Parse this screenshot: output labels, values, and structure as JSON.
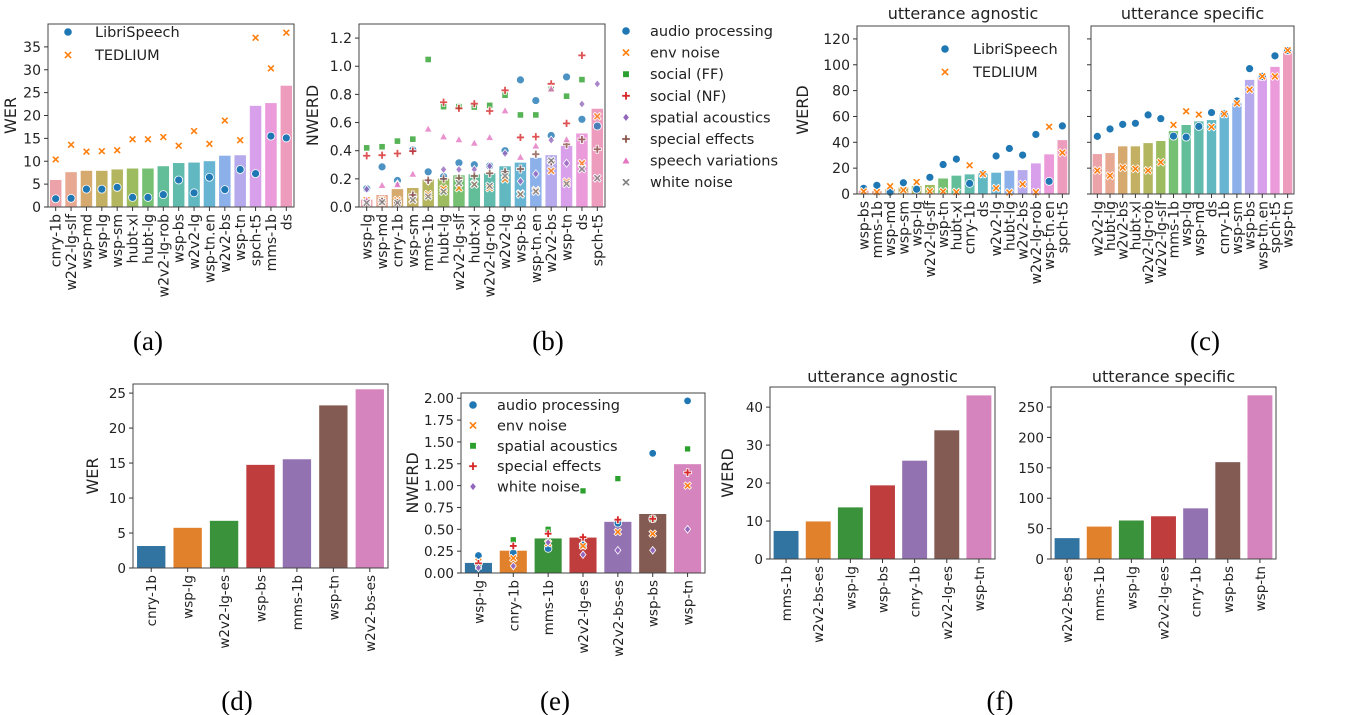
{
  "bar_palette16": [
    "#e8939a",
    "#e49a7f",
    "#cf9a55",
    "#b9a246",
    "#a6a843",
    "#8bb043",
    "#5db559",
    "#45b386",
    "#45b0a0",
    "#46acb5",
    "#4da8cb",
    "#78a3e6",
    "#a99be9",
    "#d18fe6",
    "#e789d4",
    "#ea8bb3"
  ],
  "bar_palette7": [
    "#3274a1",
    "#e1812c",
    "#3a923a",
    "#c03d3e",
    "#9372b2",
    "#845b53",
    "#d684bd"
  ],
  "marker_colors": {
    "blue": "#1f77b4",
    "orange": "#ff7f0e",
    "green": "#2ca02c",
    "red": "#d62728",
    "purple": "#9467bd",
    "brown": "#8c564b",
    "pink": "#e377c2",
    "gray": "#7f7f7f"
  },
  "captions": [
    "(a)",
    "(b)",
    "(c)",
    "(d)",
    "(e)",
    "(f)"
  ],
  "chart_data": [
    {
      "panel": "(a)",
      "type": "bar+scatter",
      "title": "",
      "ylabel": "WER",
      "ylim": [
        0,
        40
      ],
      "yticks": [
        "0",
        "5",
        "10",
        "15",
        "20",
        "25",
        "30",
        "35"
      ],
      "ytick_values": [
        0,
        5,
        10,
        15,
        20,
        25,
        30,
        35
      ],
      "categories": [
        "cnry-1b",
        "w2v2-lg-slf",
        "wsp-md",
        "wsp-lg",
        "wsp-sm",
        "hubt-xl",
        "hubt-lg",
        "w2v2-lg-rob",
        "wsp-bs",
        "w2v2-lg",
        "wsp-tn.en",
        "w2v2-bs",
        "wsp-tn",
        "spch-t5",
        "mms-1b",
        "ds"
      ],
      "bars": [
        6.0,
        7.7,
        8.0,
        8.0,
        8.3,
        8.5,
        8.5,
        9.0,
        9.7,
        9.8,
        10.1,
        11.3,
        11.4,
        22.2,
        22.8,
        26.6
      ],
      "bar_colors": "palette16",
      "series": [
        {
          "name": "LibriSpeech",
          "marker": "circle",
          "color": "blue",
          "values": [
            1.8,
            1.9,
            3.9,
            3.9,
            4.3,
            2.1,
            2.1,
            2.7,
            5.9,
            3.1,
            6.5,
            3.8,
            8.2,
            7.3,
            15.5,
            15.1
          ]
        },
        {
          "name": "TEDLIUM",
          "marker": "x",
          "color": "orange",
          "values": [
            10.4,
            13.6,
            12.1,
            12.2,
            12.4,
            14.8,
            14.8,
            15.3,
            13.4,
            16.6,
            13.8,
            18.9,
            14.6,
            37.0,
            30.3,
            38.1
          ]
        }
      ],
      "legend": "upper-left"
    },
    {
      "panel": "(b)",
      "type": "bar+scatter",
      "title": "",
      "ylabel": "NWERD",
      "ylim": [
        0,
        1.3
      ],
      "yticks": [
        "0.0",
        "0.2",
        "0.4",
        "0.6",
        "0.8",
        "1.0",
        "1.2"
      ],
      "ytick_values": [
        0,
        0.2,
        0.4,
        0.6,
        0.8,
        1.0,
        1.2
      ],
      "categories": [
        "wsp-lg",
        "wsp-md",
        "cnry-1b",
        "wsp-sm",
        "mms-1b",
        "hubt-lg",
        "w2v2-lg-slf",
        "hubt-xl",
        "w2v2-lg-rob",
        "w2v2-lg",
        "wsp-bs",
        "wsp-tn.en",
        "w2v2-bs",
        "wsp-tn",
        "ds",
        "spch-t5"
      ],
      "bars": [
        0.055,
        0.088,
        0.13,
        0.138,
        0.197,
        0.204,
        0.228,
        0.235,
        0.242,
        0.292,
        0.318,
        0.352,
        0.371,
        0.437,
        0.525,
        0.701
      ],
      "bar_colors": "palette16",
      "series": [
        {
          "name": "audio processing",
          "marker": "circle",
          "color": "blue",
          "values": [
            0.13,
            0.285,
            0.188,
            0.406,
            0.25,
            0.216,
            0.314,
            0.3,
            0.292,
            0.4,
            0.903,
            0.756,
            0.508,
            0.924,
            0.623,
            0.575
          ]
        },
        {
          "name": "env noise",
          "marker": "x",
          "color": "orange",
          "values": [
            0.05,
            0.05,
            0.048,
            0.055,
            0.09,
            0.13,
            0.135,
            0.164,
            0.135,
            0.197,
            0.095,
            0.119,
            0.257,
            0.18,
            0.311,
            0.644
          ]
        },
        {
          "name": "social (FF)",
          "marker": "square",
          "color": "green",
          "values": [
            0.42,
            0.428,
            0.468,
            0.482,
            1.048,
            0.713,
            0.713,
            0.71,
            0.722,
            0.794,
            0.654,
            0.654,
            0.836,
            0.787,
            0.905,
            null
          ]
        },
        {
          "name": "social (NF)",
          "marker": "plus",
          "color": "red",
          "values": [
            0.364,
            0.368,
            0.38,
            0.397,
            null,
            0.744,
            0.701,
            0.734,
            0.682,
            0.829,
            0.494,
            0.499,
            0.875,
            0.594,
            1.077,
            null
          ]
        },
        {
          "name": "spatial acoustics",
          "marker": "diamond",
          "color": "purple",
          "values": [
            0.126,
            0.05,
            0.164,
            0.085,
            0.183,
            0.266,
            0.266,
            0.266,
            0.29,
            0.38,
            0.183,
            0.235,
            0.475,
            0.311,
            0.732,
            0.875
          ]
        },
        {
          "name": "special effects",
          "marker": "plus",
          "color": "brown",
          "values": [
            0.03,
            0.04,
            0.03,
            0.085,
            0.19,
            0.2,
            0.205,
            0.22,
            0.24,
            0.25,
            0.27,
            0.375,
            0.32,
            0.445,
            0.48,
            0.41
          ]
        },
        {
          "name": "speech variations",
          "marker": "triangle",
          "color": "pink",
          "values": [
            0.05,
            0.155,
            0.16,
            0.235,
            0.555,
            0.5,
            0.48,
            0.455,
            0.495,
            0.685,
            0.355,
            0.435,
            0.84,
            0.48,
            null,
            null
          ]
        },
        {
          "name": "white noise",
          "marker": "x",
          "color": "gray",
          "values": [
            0.03,
            0.035,
            0.03,
            0.05,
            0.075,
            0.11,
            0.17,
            0.16,
            0.15,
            0.22,
            0.09,
            0.11,
            0.33,
            0.165,
            0.27,
            0.205
          ]
        }
      ],
      "legend": "outside-right"
    },
    {
      "panel": "(c)",
      "type": "bar+scatter",
      "title": "utterance agnostic",
      "ylabel": "WERD",
      "ylim": [
        0,
        130
      ],
      "yticks": [
        "0",
        "20",
        "40",
        "60",
        "80",
        "100",
        "120"
      ],
      "ytick_values": [
        0,
        20,
        40,
        60,
        80,
        100,
        120
      ],
      "categories": [
        "wsp-bs",
        "mms-1b",
        "wsp-md",
        "wsp-sm",
        "wsp-lg",
        "w2v2-lg-slf",
        "wsp-tn",
        "hubt-xl",
        "cnry-1b",
        "ds",
        "w2v2-lg",
        "hubt-lg",
        "w2v2-bs",
        "w2v2-lg-rob",
        "wsp-tn.en",
        "spch-t5"
      ],
      "bars": [
        3,
        2.5,
        4,
        5.5,
        6.5,
        7.3,
        12.3,
        14.5,
        15.5,
        16,
        16.8,
        18.3,
        18.8,
        24,
        31,
        42
      ],
      "bar_colors": "palette16",
      "series": [
        {
          "name": "LibriSpeech",
          "marker": "circle",
          "color": "blue",
          "values": [
            4.4,
            6.7,
            1.5,
            8.7,
            3.7,
            12.9,
            22.8,
            27,
            8.2,
            15.6,
            29.4,
            35.2,
            30.1,
            46.1,
            9.8,
            52.7
          ]
        },
        {
          "name": "TEDLIUM",
          "marker": "x",
          "color": "orange",
          "values": [
            2,
            1.5,
            6,
            3,
            9.3,
            2.1,
            2,
            1.5,
            22.2,
            15.5,
            4.5,
            1.2,
            7.6,
            1.4,
            52,
            32
          ]
        }
      ],
      "legend": "upper-right"
    },
    {
      "panel": "(c)",
      "type": "bar+scatter",
      "title": "utterance specific",
      "ylabel": "",
      "ylim": [
        0,
        130
      ],
      "sharey": true,
      "yticks": [
        "",
        "",
        "",
        "",
        "",
        "",
        ""
      ],
      "ytick_values": [
        0,
        20,
        40,
        60,
        80,
        100,
        120
      ],
      "categories": [
        "w2v2-lg",
        "hubt-lg",
        "w2v2-bs",
        "hubt-xl",
        "w2v2-lg-rob",
        "w2v2-lg-slf",
        "mms-1b",
        "wsp-lg",
        "wsp-md",
        "ds",
        "cnry-1b",
        "wsp-sm",
        "wsp-bs",
        "wsp-tn.en",
        "spch-t5",
        "wsp-tn"
      ],
      "bars": [
        31.2,
        32,
        37.2,
        37.2,
        39.7,
        41.3,
        49,
        53.7,
        56.5,
        57.5,
        61.8,
        70.5,
        88.6,
        90.8,
        98.7,
        111
      ],
      "bar_colors": "palette16",
      "series": [
        {
          "name": "LibriSpeech",
          "marker": "circle",
          "color": "blue",
          "values": [
            44.6,
            50.3,
            53.9,
            54.7,
            61.2,
            58.3,
            44.8,
            44,
            52.3,
            63,
            62,
            72,
            97,
            91,
            106.9,
            111
          ]
        },
        {
          "name": "TEDLIUM",
          "marker": "x",
          "color": "orange",
          "values": [
            18.2,
            14.2,
            20.4,
            19.5,
            18.2,
            24.6,
            53.5,
            64,
            61.5,
            51.9,
            62,
            70.2,
            80.8,
            91,
            91,
            111.2
          ]
        }
      ],
      "legend": "none"
    },
    {
      "panel": "(d)",
      "type": "bar",
      "title": "",
      "ylabel": "WER",
      "ylim": [
        0,
        26.3
      ],
      "yticks": [
        "0",
        "5",
        "10",
        "15",
        "20",
        "25"
      ],
      "ytick_values": [
        0,
        5,
        10,
        15,
        20,
        25
      ],
      "categories": [
        "cnry-1b",
        "wsp-lg",
        "w2v2-lg-es",
        "wsp-bs",
        "mms-1b",
        "wsp-tn",
        "w2v2-bs-es"
      ],
      "bars": [
        3.2,
        5.8,
        6.8,
        14.8,
        15.6,
        23.3,
        25.6
      ],
      "bar_colors": "palette7",
      "series": [],
      "legend": "none"
    },
    {
      "panel": "(e)",
      "type": "bar+scatter",
      "title": "",
      "ylabel": "NWERD",
      "ylim": [
        0,
        2.06
      ],
      "yticks": [
        "0.00",
        "0.25",
        "0.50",
        "0.75",
        "1.00",
        "1.25",
        "1.50",
        "1.75",
        "2.00"
      ],
      "ytick_values": [
        0,
        0.25,
        0.5,
        0.75,
        1.0,
        1.25,
        1.5,
        1.75,
        2.0
      ],
      "categories": [
        "wsp-lg",
        "cnry-1b",
        "mms-1b",
        "w2v2-lg-es",
        "w2v2-bs-es",
        "wsp-bs",
        "wsp-tn"
      ],
      "bars": [
        0.12,
        0.26,
        0.4,
        0.41,
        0.59,
        0.68,
        1.25
      ],
      "bar_colors": "palette7",
      "series": [
        {
          "name": "audio processing",
          "marker": "circle",
          "color": "blue",
          "values": [
            0.2,
            0.23,
            0.28,
            0.32,
            0.57,
            1.37,
            1.97
          ]
        },
        {
          "name": "env noise",
          "marker": "x",
          "color": "orange",
          "values": [
            0.13,
            0.17,
            0.34,
            0.31,
            0.47,
            0.45,
            1.0
          ]
        },
        {
          "name": "spatial acoustics",
          "marker": "square",
          "color": "green",
          "values": [
            0.08,
            0.38,
            0.5,
            0.94,
            1.08,
            0.62,
            1.42
          ]
        },
        {
          "name": "special effects",
          "marker": "plus",
          "color": "red",
          "values": [
            0.11,
            0.31,
            0.45,
            0.41,
            0.61,
            0.62,
            1.15
          ]
        },
        {
          "name": "white noise",
          "marker": "diamond",
          "color": "purple",
          "values": [
            0.06,
            0.08,
            0.35,
            0.21,
            0.26,
            0.26,
            0.5
          ]
        }
      ],
      "legend": "upper-left"
    },
    {
      "panel": "(f)",
      "type": "bar",
      "title": "utterance agnostic",
      "ylabel": "WERD",
      "ylim": [
        0,
        45.3
      ],
      "yticks": [
        "0",
        "10",
        "20",
        "30",
        "40"
      ],
      "ytick_values": [
        0,
        10,
        20,
        30,
        40
      ],
      "categories": [
        "mms-1b",
        "w2v2-bs-es",
        "wsp-lg",
        "wsp-bs",
        "cnry-1b",
        "w2v2-lg-es",
        "wsp-tn"
      ],
      "bars": [
        7.5,
        10,
        13.7,
        19.5,
        26,
        34,
        43.2
      ],
      "bar_colors": "palette7",
      "series": [],
      "legend": "none"
    },
    {
      "panel": "(f)",
      "type": "bar",
      "title": "utterance specific",
      "ylabel": "",
      "ylim": [
        0,
        283
      ],
      "yticks": [
        "0",
        "50",
        "100",
        "150",
        "200",
        "250"
      ],
      "ytick_values": [
        0,
        50,
        100,
        150,
        200,
        250
      ],
      "categories": [
        "w2v2-bs-es",
        "mms-1b",
        "wsp-lg",
        "w2v2-lg-es",
        "cnry-1b",
        "wsp-bs",
        "wsp-tn"
      ],
      "bars": [
        35,
        54,
        64,
        71,
        84,
        160,
        270
      ],
      "bar_colors": "palette7",
      "series": [],
      "legend": "none"
    }
  ]
}
